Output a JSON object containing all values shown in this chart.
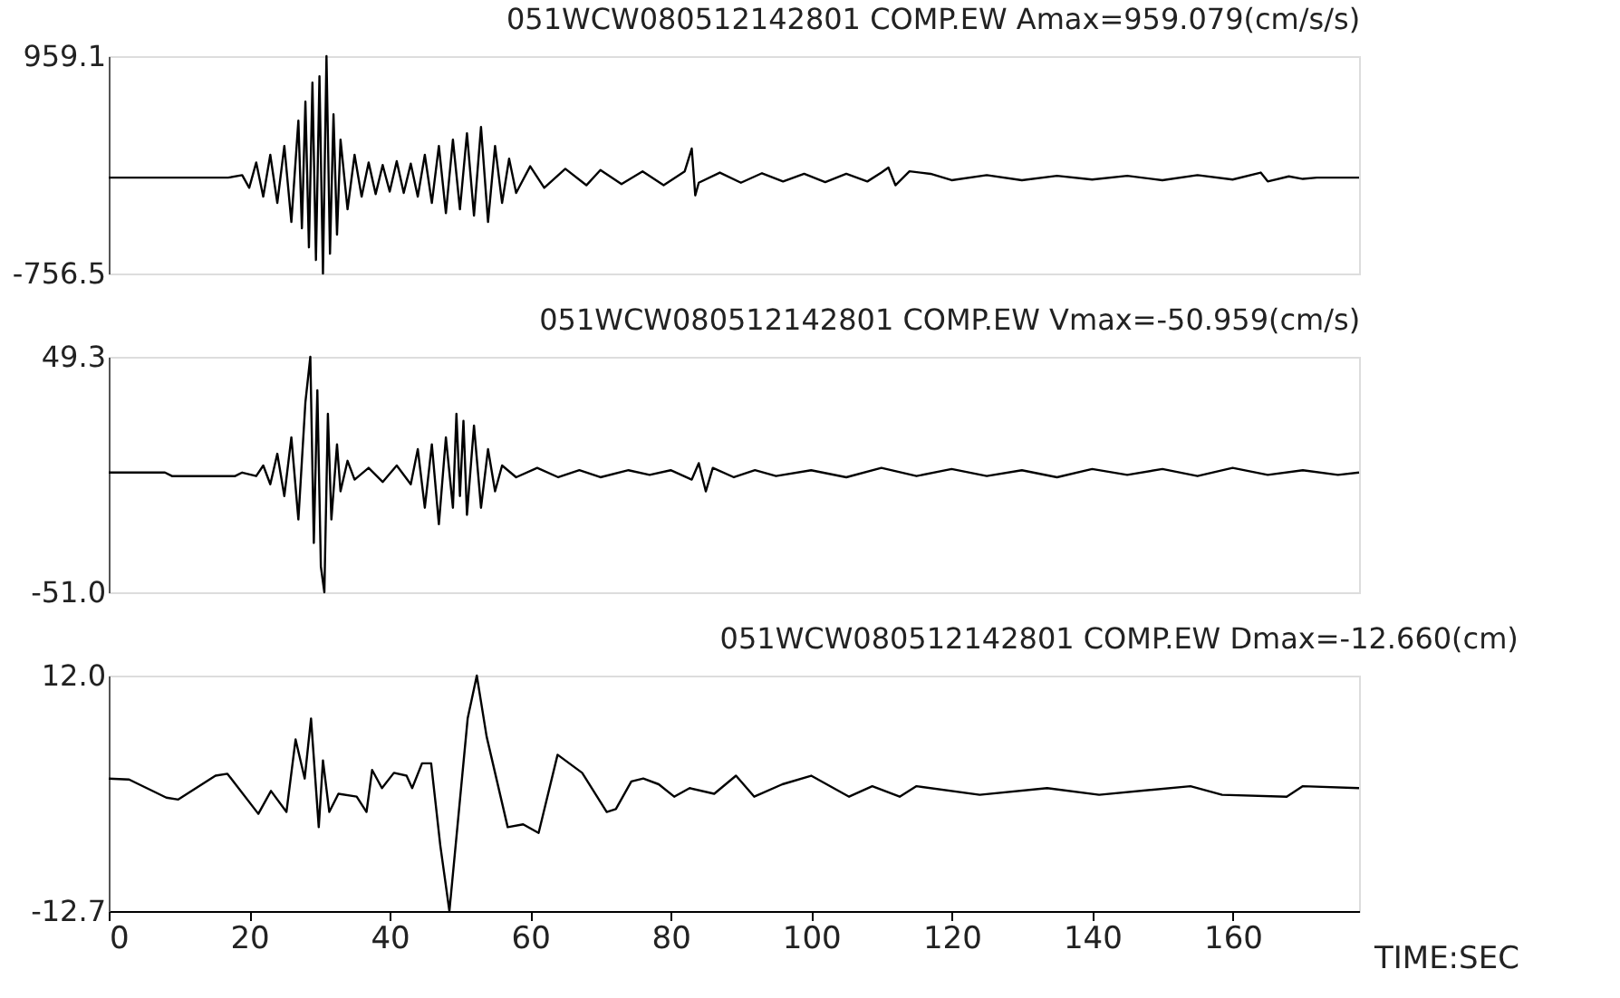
{
  "chart_data": [
    {
      "type": "line",
      "title": "051WCW080512142801 COMP.EW Amax=959.079(cm/s/s)",
      "tick_labels": "y",
      "grid": false,
      "xlim": [
        0,
        178
      ],
      "ylim": [
        -756.5,
        959.1
      ],
      "yticks": [
        -756.5,
        959.1
      ],
      "series": [
        {
          "color": "#000000",
          "x": [
            0,
            17,
            19,
            20,
            21,
            22,
            23,
            24,
            25,
            26,
            27,
            27.5,
            28,
            28.5,
            29,
            29.5,
            30,
            30.5,
            31,
            31.5,
            32,
            32.5,
            33,
            34,
            35,
            36,
            37,
            38,
            39,
            40,
            41,
            42,
            43,
            44,
            45,
            46,
            47,
            48,
            49,
            50,
            51,
            52,
            53,
            54,
            55,
            56,
            57,
            58,
            60,
            62,
            65,
            68,
            70,
            73,
            76,
            79,
            82,
            83,
            83.5,
            84,
            87,
            90,
            93,
            96,
            99,
            102,
            105,
            108,
            110,
            111,
            112,
            114,
            117,
            120,
            125,
            130,
            135,
            140,
            145,
            150,
            155,
            160,
            164,
            165,
            168,
            170,
            172,
            178
          ],
          "values": [
            0,
            0,
            20,
            -80,
            120,
            -150,
            180,
            -200,
            250,
            -350,
            450,
            -400,
            600,
            -550,
            750,
            -650,
            800,
            -756.5,
            959.1,
            -600,
            500,
            -450,
            300,
            -250,
            180,
            -150,
            120,
            -130,
            100,
            -110,
            130,
            -120,
            110,
            -150,
            180,
            -200,
            250,
            -280,
            300,
            -250,
            350,
            -300,
            400,
            -350,
            250,
            -200,
            150,
            -120,
            90,
            -80,
            70,
            -60,
            60,
            -50,
            50,
            -60,
            50,
            230,
            -140,
            -40,
            40,
            -40,
            35,
            -30,
            30,
            -35,
            30,
            -30,
            40,
            80,
            -60,
            50,
            30,
            -20,
            20,
            -20,
            15,
            -15,
            15,
            -20,
            20,
            -15,
            40,
            -30,
            10,
            -10,
            0,
            0
          ]
        }
      ]
    },
    {
      "type": "line",
      "title": "051WCW080512142801 COMP.EW Vmax=-50.959(cm/s)",
      "tick_labels": "y",
      "grid": false,
      "xlim": [
        0,
        178
      ],
      "ylim": [
        -51.0,
        49.3
      ],
      "yticks": [
        {
          "value": -51.0,
          "label": "-51.0"
        },
        49.3
      ],
      "series": [
        {
          "color": "#000000",
          "x": [
            0,
            8,
            9,
            18,
            19,
            21,
            22,
            23,
            24,
            25,
            26,
            27,
            28,
            28.7,
            29.2,
            29.7,
            30.2,
            30.7,
            31.2,
            31.7,
            32.5,
            33,
            34,
            35,
            37,
            39,
            41,
            43,
            44,
            45,
            46,
            47,
            48,
            49,
            49.5,
            50,
            50.5,
            51,
            52,
            53,
            54,
            55,
            56,
            58,
            61,
            64,
            67,
            70,
            74,
            77,
            80,
            83,
            84,
            85,
            86,
            89,
            92,
            95,
            100,
            105,
            110,
            115,
            120,
            125,
            130,
            135,
            140,
            145,
            150,
            155,
            160,
            165,
            170,
            175,
            178
          ],
          "values": [
            0,
            0,
            -1.5,
            -1.5,
            0,
            -1.5,
            3,
            -5,
            8,
            -10,
            15,
            -20,
            30,
            49.3,
            -30,
            35,
            -40,
            -51.0,
            25,
            -20,
            12,
            -8,
            5,
            -3,
            2,
            -4,
            3,
            -5,
            10,
            -15,
            12,
            -22,
            15,
            -15,
            25,
            -10,
            22,
            -18,
            20,
            -15,
            10,
            -8,
            3,
            -2,
            2,
            -2,
            1,
            -2,
            1,
            -1,
            1,
            -3,
            4,
            -8,
            2,
            -2,
            1,
            -1.5,
            1,
            -2,
            2,
            -1.5,
            1.5,
            -1.5,
            1,
            -2,
            1.5,
            -1,
            1.5,
            -1.5,
            2,
            -1,
            1,
            -1,
            0
          ]
        }
      ]
    },
    {
      "type": "line",
      "title": "051WCW080512142801 COMP.EW Dmax=-12.660(cm)",
      "xlabel": "TIME:SEC",
      "grid": false,
      "xlim": [
        0,
        178
      ],
      "xticks": [
        0,
        20,
        40,
        60,
        80,
        100,
        120,
        140,
        160
      ],
      "ylim": [
        -12.7,
        12.0
      ],
      "yticks": [
        -12.7,
        {
          "value": 12.0,
          "label": "12.0"
        }
      ],
      "series": [
        {
          "color": "#000000",
          "x": [
            0,
            2.9,
            8.2,
            9.9,
            15.2,
            16.9,
            21.3,
            23.1,
            25.3,
            26.6,
            27.9,
            28.8,
            29.9,
            30.5,
            31.4,
            32.7,
            35.3,
            36.7,
            37.5,
            38.9,
            40.6,
            42.4,
            43.2,
            44.6,
            45.9,
            47.2,
            48.5,
            48.9,
            51.1,
            52.4,
            53.8,
            56.8,
            59.0,
            61.2,
            63.9,
            67.4,
            70.9,
            72.2,
            74.4,
            76.1,
            78.3,
            80.5,
            82.7,
            86.2,
            89.3,
            91.9,
            95.9,
            100,
            105.4,
            108.7,
            112.6,
            115,
            124,
            133.6,
            141,
            154,
            158.5,
            167.7,
            170,
            178
          ],
          "values": [
            1.2,
            1.1,
            -0.8,
            -1.0,
            1.5,
            1.7,
            -2.5,
            -0.1,
            -2.3,
            5.3,
            1.2,
            7.5,
            -3.9,
            3.1,
            -2.3,
            -0.4,
            -0.7,
            -2.3,
            2.1,
            0.2,
            1.8,
            1.5,
            0.2,
            2.8,
            2.8,
            -5.8,
            -12.7,
            -9.6,
            7.5,
            12.0,
            5.6,
            -3.9,
            -3.6,
            -4.5,
            3.7,
            1.8,
            -2.3,
            -2.0,
            0.9,
            1.2,
            0.6,
            -0.7,
            0.2,
            -0.4,
            1.5,
            -0.7,
            0.6,
            1.5,
            -0.7,
            0.4,
            -0.7,
            0.4,
            -0.5,
            0.2,
            -0.5,
            0.4,
            -0.5,
            -0.7,
            0.4,
            0.2
          ]
        }
      ]
    }
  ]
}
